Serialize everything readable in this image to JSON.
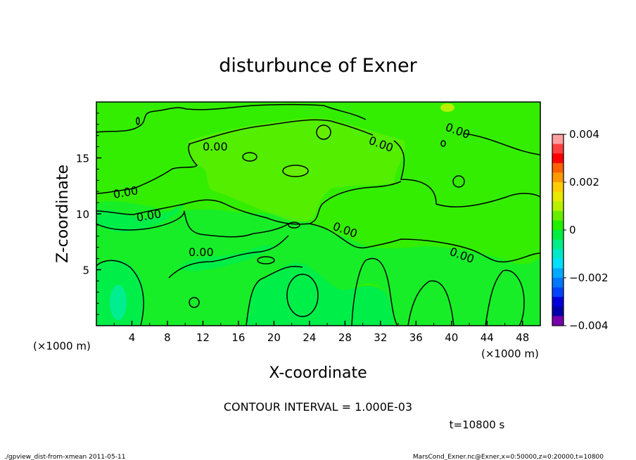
{
  "chart_data": {
    "type": "heatmap",
    "title": "disturbunce of Exner",
    "xlabel": "X-coordinate",
    "ylabel": "Z-coordinate",
    "x_unit": "(×1000 m)",
    "xlim": [
      0,
      50
    ],
    "ylim": [
      0,
      20
    ],
    "x_ticks": [
      "4",
      "8",
      "12",
      "16",
      "20",
      "24",
      "28",
      "32",
      "36",
      "40",
      "44",
      "48"
    ],
    "y_ticks": [
      "5",
      "10",
      "15"
    ],
    "colorbar": {
      "ticks": [
        "0.004",
        "0.002",
        "0",
        "−0.002",
        "−0.004"
      ],
      "range": [
        -0.004,
        0.004
      ],
      "colors": [
        "#ffa0a0",
        "#ff4040",
        "#ff0000",
        "#ff6000",
        "#ff9900",
        "#ffcc00",
        "#e8e800",
        "#b8f000",
        "#66ee00",
        "#22ee00",
        "#00ee40",
        "#00ee88",
        "#00e8c8",
        "#00e0ff",
        "#00aaff",
        "#0077ff",
        "#0044ff",
        "#0000dd",
        "#0000aa",
        "#7700aa"
      ]
    },
    "contour_labels": [
      "0.00",
      "0.00",
      "0.00",
      "0.00",
      "0.00",
      "0.00",
      "0.00",
      "0.00"
    ],
    "contour_interval_text": "CONTOUR INTERVAL = 1.000E-03",
    "time_text": "t=10800 s",
    "grid": false,
    "legend": "right"
  },
  "footer": {
    "left": "./gpview_dist-from-xmean  2011-05-11",
    "right": "MarsCond_Exner.nc@Exner,x=0:50000,z=0:20000,t=10800"
  }
}
